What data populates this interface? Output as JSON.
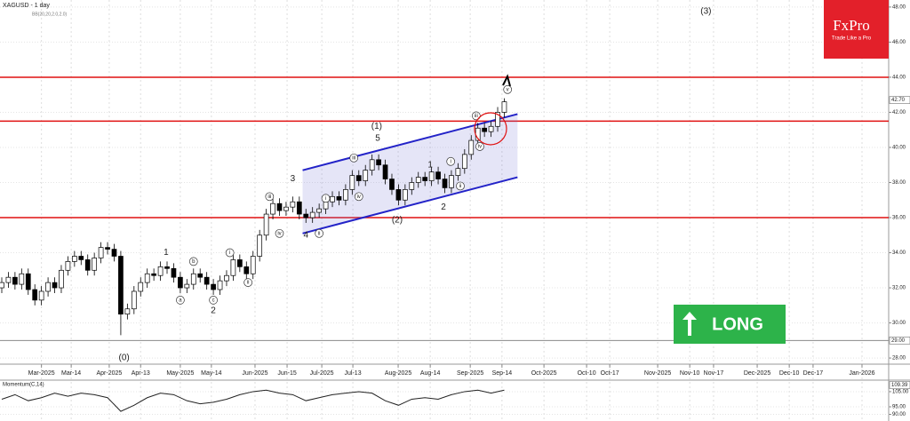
{
  "chart_data": [
    {
      "type": "candlestick",
      "title": "XAGUSD - 1 day",
      "indicator": "BB(20,20,2.0,2.0)",
      "x": [
        0,
        2,
        4,
        6,
        8,
        10,
        12,
        14,
        16,
        18,
        20,
        22,
        24,
        26,
        28,
        30,
        32,
        34,
        36,
        38,
        40,
        42,
        44,
        46,
        48,
        50,
        52,
        54,
        56,
        58,
        60,
        62,
        64,
        66,
        68,
        70,
        72,
        74,
        76,
        78,
        80,
        82,
        84,
        86,
        88,
        90,
        92,
        94,
        96,
        98,
        100,
        102,
        104,
        106,
        108,
        110,
        112,
        114,
        116,
        118,
        120,
        122,
        124,
        126,
        128,
        130,
        132,
        134,
        136,
        138,
        140,
        142,
        144,
        146,
        148,
        150,
        152
      ],
      "open": [
        32.0,
        32.3,
        32.6,
        32.2,
        32.8,
        31.9,
        31.3,
        31.8,
        32.3,
        32.0,
        33.0,
        33.5,
        33.8,
        33.6,
        33.0,
        33.7,
        34.3,
        34.2,
        33.8,
        30.5,
        30.8,
        31.8,
        32.3,
        32.8,
        32.7,
        33.2,
        33.1,
        32.6,
        32.0,
        32.2,
        32.8,
        32.6,
        32.2,
        31.9,
        32.4,
        32.7,
        33.6,
        33.2,
        32.8,
        33.8,
        35.0,
        36.2,
        36.8,
        36.4,
        36.6,
        36.9,
        36.2,
        36.0,
        36.3,
        36.5,
        36.9,
        37.2,
        37.0,
        37.6,
        38.4,
        38.1,
        38.7,
        39.3,
        39.0,
        38.2,
        37.6,
        37.0,
        37.6,
        38.0,
        38.3,
        38.1,
        38.6,
        38.2,
        37.7,
        38.4,
        38.8,
        39.6,
        40.4,
        41.1,
        40.9,
        41.2,
        42.0
      ],
      "high": [
        32.6,
        32.9,
        32.9,
        33.1,
        33.1,
        32.2,
        32.1,
        32.6,
        32.6,
        33.3,
        33.8,
        34.1,
        34.1,
        33.9,
        34.0,
        34.6,
        34.6,
        34.5,
        34.1,
        31.1,
        32.1,
        32.6,
        33.1,
        33.1,
        33.5,
        33.5,
        33.4,
        32.9,
        32.5,
        33.1,
        33.1,
        32.9,
        32.5,
        32.7,
        33.0,
        33.9,
        33.9,
        33.5,
        34.1,
        35.3,
        36.5,
        37.1,
        37.1,
        36.9,
        37.2,
        37.2,
        36.5,
        36.6,
        36.8,
        37.2,
        37.5,
        37.5,
        37.9,
        38.7,
        38.7,
        39.0,
        39.6,
        39.6,
        39.3,
        38.5,
        37.9,
        37.9,
        38.3,
        38.6,
        38.6,
        38.9,
        38.9,
        38.5,
        38.7,
        39.1,
        39.9,
        40.7,
        41.4,
        41.4,
        41.5,
        42.3,
        42.8
      ],
      "low": [
        31.7,
        32.0,
        31.9,
        31.9,
        31.6,
        31.0,
        31.0,
        31.5,
        31.7,
        31.7,
        32.7,
        33.2,
        33.3,
        32.7,
        32.7,
        33.4,
        33.9,
        33.5,
        29.3,
        30.2,
        30.5,
        31.5,
        32.0,
        32.4,
        32.4,
        32.8,
        32.3,
        31.7,
        31.7,
        31.9,
        32.3,
        31.9,
        31.6,
        31.6,
        32.1,
        32.4,
        32.9,
        32.5,
        32.5,
        33.5,
        34.7,
        35.9,
        36.1,
        36.1,
        36.3,
        35.9,
        35.7,
        35.7,
        36.0,
        36.2,
        36.6,
        36.7,
        36.7,
        37.3,
        37.8,
        37.8,
        38.4,
        38.7,
        37.9,
        37.3,
        36.7,
        36.7,
        37.3,
        37.7,
        37.8,
        37.8,
        37.9,
        37.4,
        37.4,
        38.1,
        38.5,
        39.3,
        40.1,
        40.6,
        40.6,
        40.9,
        41.7
      ],
      "close": [
        32.3,
        32.6,
        32.2,
        32.8,
        31.9,
        31.3,
        31.8,
        32.3,
        32.0,
        33.0,
        33.5,
        33.8,
        33.6,
        33.0,
        33.7,
        34.3,
        34.2,
        33.8,
        30.5,
        30.8,
        31.8,
        32.3,
        32.8,
        32.7,
        33.2,
        33.1,
        32.6,
        32.0,
        32.2,
        32.8,
        32.6,
        32.2,
        31.9,
        32.4,
        32.7,
        33.6,
        33.2,
        32.8,
        33.8,
        35.0,
        36.2,
        36.8,
        36.4,
        36.6,
        36.9,
        36.2,
        36.0,
        36.3,
        36.5,
        36.9,
        37.2,
        37.0,
        37.6,
        38.4,
        38.1,
        38.7,
        39.3,
        39.0,
        38.2,
        37.6,
        37.0,
        37.6,
        38.0,
        38.3,
        38.1,
        38.6,
        38.2,
        37.7,
        38.4,
        38.8,
        39.6,
        40.4,
        41.1,
        40.9,
        41.2,
        42.0,
        42.6
      ],
      "up_color": "#ffffff",
      "down_color": "#000000",
      "xlim": [
        0,
        268
      ],
      "ylim": [
        27.65,
        48.4
      ],
      "yticks": [
        {
          "value": 28,
          "label": "28.00"
        },
        {
          "value": 30,
          "label": "30.00"
        },
        {
          "value": 32,
          "label": "32.00"
        },
        {
          "value": 34,
          "label": "34.00"
        },
        {
          "value": 36,
          "label": "36.00"
        },
        {
          "value": 38,
          "label": "38.00"
        },
        {
          "value": 40,
          "label": "40.00"
        },
        {
          "value": 42,
          "label": "42.00"
        },
        {
          "value": 44,
          "label": "44.00"
        },
        {
          "value": 46,
          "label": "46.00"
        },
        {
          "value": 48,
          "label": "48.00"
        }
      ],
      "price_tags": [
        {
          "value": 42.7,
          "label": "42.70"
        },
        {
          "value": 29,
          "label": "29.00"
        }
      ],
      "xticks": [
        {
          "value": 12,
          "label": "Mar-2025"
        },
        {
          "value": 21,
          "label": "Mar-14"
        },
        {
          "value": 32.5,
          "label": "Apr-2025"
        },
        {
          "value": 42,
          "label": "Apr-13"
        },
        {
          "value": 54,
          "label": "May-2025"
        },
        {
          "value": 63.4,
          "label": "May-14"
        },
        {
          "value": 76.6,
          "label": "Jun-2025"
        },
        {
          "value": 86.3,
          "label": "Jun-15"
        },
        {
          "value": 96.8,
          "label": "Jul-2025"
        },
        {
          "value": 106.2,
          "label": "Jul-13"
        },
        {
          "value": 119.9,
          "label": "Aug-2025"
        },
        {
          "value": 129.6,
          "label": "Aug-14"
        },
        {
          "value": 141.7,
          "label": "Sep-2025"
        },
        {
          "value": 151.3,
          "label": "Sep-14"
        },
        {
          "value": 164,
          "label": "Oct-2025"
        },
        {
          "value": 176.9,
          "label": "Oct-10"
        },
        {
          "value": 183.9,
          "label": "Oct-17"
        },
        {
          "value": 198.4,
          "label": "Nov-2025"
        },
        {
          "value": 208.1,
          "label": "Nov-10"
        },
        {
          "value": 215.3,
          "label": "Nov-17"
        },
        {
          "value": 228.5,
          "label": "Dec-2025"
        },
        {
          "value": 238.2,
          "label": "Dec-10"
        },
        {
          "value": 245.4,
          "label": "Dec-17"
        },
        {
          "value": 260.2,
          "label": "Jan-2026"
        }
      ],
      "levels": [
        {
          "value": 44,
          "color": "#e01010"
        },
        {
          "value": 41.5,
          "color": "#e01010"
        },
        {
          "value": 36,
          "color": "#e01010"
        },
        {
          "value": 29,
          "color": "#8a8a8a"
        }
      ],
      "channel": {
        "color": "#2323c8",
        "upper": [
          [
            91,
            38.7
          ],
          [
            156,
            41.9
          ]
        ],
        "lower": [
          [
            91,
            35.1
          ],
          [
            156,
            38.3
          ]
        ]
      },
      "annotations": [
        {
          "text": "(0)",
          "x": 37,
          "y": 28.0,
          "circled": false
        },
        {
          "text": "1",
          "x": 49.7,
          "y": 34.0,
          "circled": false
        },
        {
          "text": "a",
          "x": 54,
          "y": 31.3,
          "circled": true
        },
        {
          "text": "b",
          "x": 58,
          "y": 33.5,
          "circled": true
        },
        {
          "text": "c",
          "x": 64,
          "y": 31.3,
          "circled": true
        },
        {
          "text": "2",
          "x": 64,
          "y": 30.7,
          "circled": false
        },
        {
          "text": "i",
          "x": 69,
          "y": 34.0,
          "circled": true
        },
        {
          "text": "ii",
          "x": 74.5,
          "y": 32.3,
          "circled": true
        },
        {
          "text": "iii",
          "x": 81,
          "y": 37.2,
          "circled": true
        },
        {
          "text": "iv",
          "x": 84,
          "y": 35.1,
          "circled": true
        },
        {
          "text": "3",
          "x": 88,
          "y": 38.2,
          "circled": false
        },
        {
          "text": "4",
          "x": 92,
          "y": 35.0,
          "circled": false
        },
        {
          "text": "i",
          "x": 98,
          "y": 37.1,
          "circled": true
        },
        {
          "text": "ii",
          "x": 96,
          "y": 35.1,
          "circled": true
        },
        {
          "text": "iii",
          "x": 106.5,
          "y": 39.4,
          "circled": true
        },
        {
          "text": "iv",
          "x": 108,
          "y": 37.2,
          "circled": true
        },
        {
          "text": "5",
          "x": 113.7,
          "y": 40.5,
          "circled": false
        },
        {
          "text": "(1)",
          "x": 113.4,
          "y": 41.2,
          "circled": false
        },
        {
          "text": "(2)",
          "x": 119.6,
          "y": 35.85,
          "circled": false
        },
        {
          "text": "1",
          "x": 129.6,
          "y": 39.0,
          "circled": false
        },
        {
          "text": "2",
          "x": 133.6,
          "y": 36.6,
          "circled": false
        },
        {
          "text": "i",
          "x": 135.8,
          "y": 39.2,
          "circled": true
        },
        {
          "text": "ii",
          "x": 138.7,
          "y": 37.8,
          "circled": true
        },
        {
          "text": "iii",
          "x": 143.5,
          "y": 41.8,
          "circled": true
        },
        {
          "text": "iv",
          "x": 144.6,
          "y": 40.05,
          "circled": true
        },
        {
          "text": "v",
          "x": 153,
          "y": 43.3,
          "circled": true
        },
        {
          "text": "(3)",
          "x": 213,
          "y": 47.75,
          "circled": false
        }
      ]
    },
    {
      "type": "line",
      "title": "Momentum(C,14)",
      "color": "#222222",
      "x": [
        0,
        4,
        8,
        12,
        16,
        20,
        24,
        28,
        32,
        36,
        40,
        44,
        48,
        52,
        56,
        60,
        64,
        68,
        72,
        76,
        80,
        84,
        88,
        92,
        96,
        100,
        104,
        108,
        112,
        116,
        120,
        124,
        128,
        132,
        136,
        140,
        144,
        148,
        152
      ],
      "values": [
        100,
        103,
        99,
        101,
        104,
        102,
        104,
        103,
        101,
        92,
        96,
        101,
        104,
        103,
        99,
        97,
        98,
        100,
        103,
        105,
        106,
        104,
        103,
        99,
        101,
        103,
        104,
        105,
        104,
        99,
        96,
        100,
        101,
        100,
        103,
        105,
        106,
        104,
        106
      ],
      "xlim": [
        0,
        268
      ],
      "ylim": [
        85.6,
        112.6
      ],
      "yticks": [
        {
          "value": 90,
          "label": "90.00"
        },
        {
          "value": 95,
          "label": "95.00"
        },
        {
          "value": 105,
          "label": "105.00"
        }
      ],
      "price_tags": [
        {
          "value": 109.39,
          "label": "109.39"
        }
      ]
    }
  ],
  "branding": {
    "logo": "FxPro",
    "tagline": "Trade Like a Pro"
  },
  "signal": "LONG"
}
